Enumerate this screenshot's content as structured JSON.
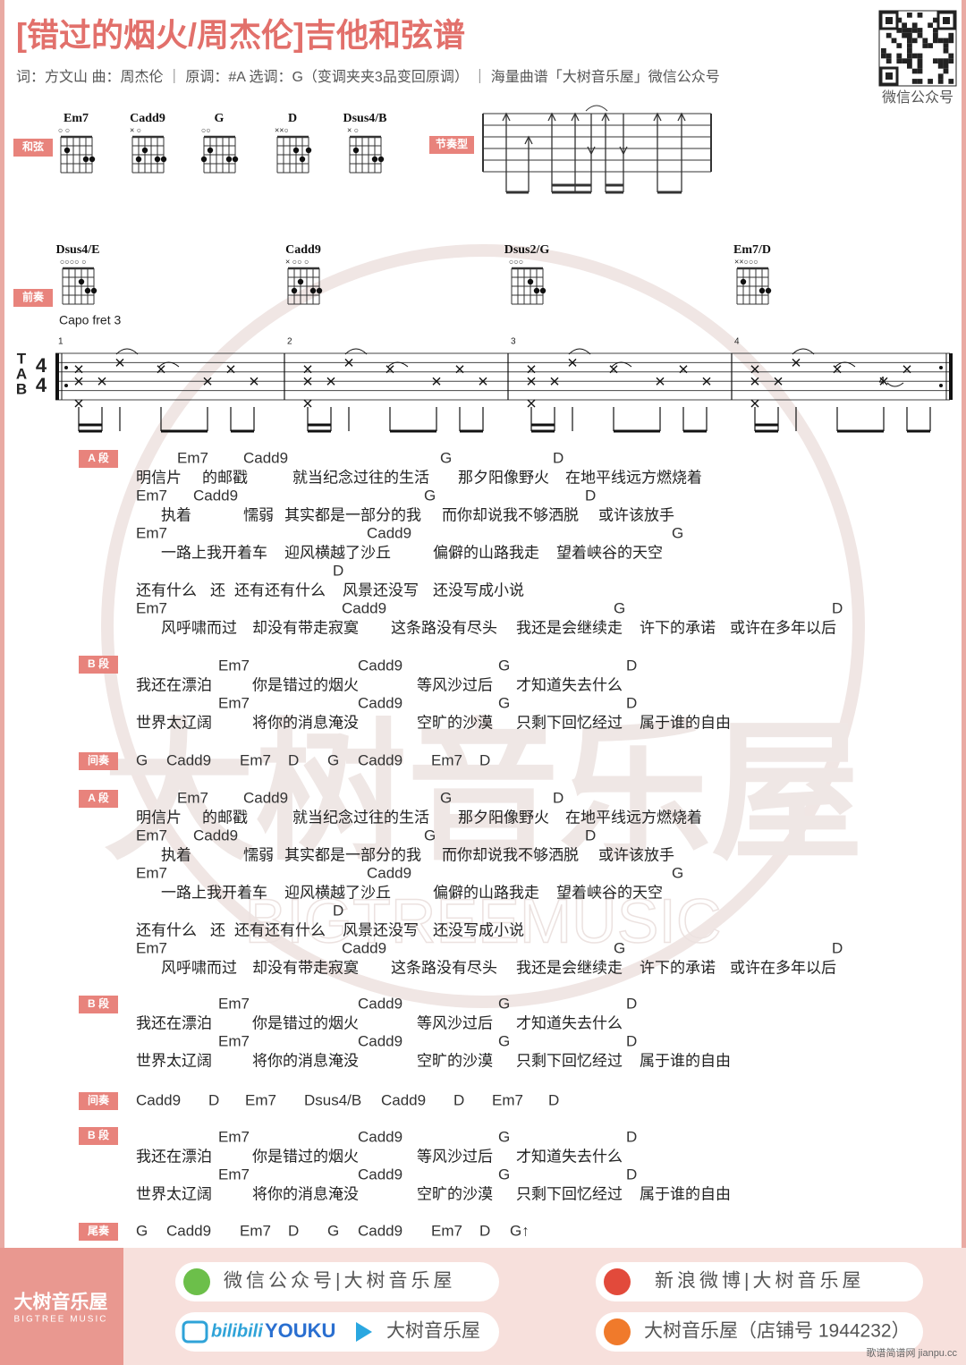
{
  "header": {
    "title": "[错过的烟火/周杰伦]吉他和弦谱",
    "meta": "词：方文山  曲：周杰伦 ｜ 原调：#A  选调：G（变调夹夹3品变回原调） ｜ 海量曲谱「大树音乐屋」微信公众号",
    "qr_caption": "微信公众号"
  },
  "chords_block": {
    "label": "和弦",
    "chords": [
      {
        "name": "Em7",
        "open": "○  ○"
      },
      {
        "name": "Cadd9",
        "open": "×  ○"
      },
      {
        "name": "G",
        "open": "○○"
      },
      {
        "name": "D",
        "open": "××○"
      },
      {
        "name": "Dsus4/B",
        "open": "×  ○"
      }
    ]
  },
  "rhythm_block": {
    "label": "节奏型"
  },
  "intro": {
    "label": "前奏",
    "chords": [
      {
        "name": "Dsus4/E",
        "open": "○○○○ ○"
      },
      {
        "name": "Cadd9",
        "open": "× ○○ ○"
      },
      {
        "name": "Dsus2/G",
        "open": "○○○"
      },
      {
        "name": "Em7/D",
        "open": "××○○○"
      }
    ],
    "capo": "Capo fret 3",
    "tab_clef": [
      "T",
      "A",
      "B"
    ],
    "time_signature": [
      "4",
      "4"
    ],
    "measure_numbers": [
      "1",
      "2",
      "3",
      "4"
    ],
    "fret_mark": "4"
  },
  "sections": [
    {
      "label": "A 段",
      "lines": [
        {
          "chords": [
            "Em7",
            "Cadd9",
            "G",
            "D"
          ],
          "lyrics": [
            "明信片",
            "的邮戳",
            "就当纪念过往的生活",
            "那夕阳像野火",
            "在地平线远方燃烧着"
          ]
        },
        {
          "chords": [
            "Em7",
            "Cadd9",
            "G",
            "D"
          ],
          "lyrics": [
            "执着",
            "懦弱",
            "其实都是一部分的我",
            "而你却说我不够洒脱",
            "或许该放手"
          ]
        },
        {
          "chords": [
            "Em7",
            "Cadd9",
            "G"
          ],
          "lyrics": [
            "一路上我开着车",
            "迎风横越了沙丘",
            "偏僻的山路我走",
            "望着峡谷的天空"
          ]
        },
        {
          "chords": [
            "D"
          ],
          "lyrics": [
            "还有什么",
            "还",
            "还有还有什么",
            "风景还没写",
            "还没写成小说"
          ]
        },
        {
          "chords": [
            "Em7",
            "Cadd9",
            "G",
            "D"
          ],
          "lyrics": [
            "风呼啸而过",
            "却没有带走寂寞",
            "这条路没有尽头",
            "我还是会继续走",
            "许下的承诺",
            "或许在多年以后"
          ]
        }
      ]
    },
    {
      "label": "B 段",
      "lines": [
        {
          "chords": [
            "Em7",
            "Cadd9",
            "G",
            "D"
          ],
          "lyrics": [
            "我还在漂泊",
            "你是错过的烟火",
            "等风沙过后",
            "才知道失去什么"
          ]
        },
        {
          "chords": [
            "Em7",
            "Cadd9",
            "G",
            "D"
          ],
          "lyrics": [
            "世界太辽阔",
            "将你的消息淹没",
            "空旷的沙漠",
            "只剩下回忆经过",
            "属于谁的自由"
          ]
        }
      ]
    },
    {
      "label": "间奏",
      "chords": [
        "G",
        "Cadd9",
        "Em7",
        "D",
        "G",
        "Cadd9",
        "Em7",
        "D"
      ]
    },
    {
      "label": "A 段",
      "lines": [
        {
          "chords": [
            "Em7",
            "Cadd9",
            "G",
            "D"
          ],
          "lyrics": [
            "明信片",
            "的邮戳",
            "就当纪念过往的生活",
            "那夕阳像野火",
            "在地平线远方燃烧着"
          ]
        },
        {
          "chords": [
            "Em7",
            "Cadd9",
            "G",
            "D"
          ],
          "lyrics": [
            "执着",
            "懦弱",
            "其实都是一部分的我",
            "而你却说我不够洒脱",
            "或许该放手"
          ]
        },
        {
          "chords": [
            "Em7",
            "Cadd9",
            "G"
          ],
          "lyrics": [
            "一路上我开着车",
            "迎风横越了沙丘",
            "偏僻的山路我走",
            "望着峡谷的天空"
          ]
        },
        {
          "chords": [
            "D"
          ],
          "lyrics": [
            "还有什么",
            "还",
            "还有还有什么",
            "风景还没写",
            "还没写成小说"
          ]
        },
        {
          "chords": [
            "Em7",
            "Cadd9",
            "G",
            "D"
          ],
          "lyrics": [
            "风呼啸而过",
            "却没有带走寂寞",
            "这条路没有尽头",
            "我还是会继续走",
            "许下的承诺",
            "或许在多年以后"
          ]
        }
      ]
    },
    {
      "label": "B 段",
      "lines": [
        {
          "chords": [
            "Em7",
            "Cadd9",
            "G",
            "D"
          ],
          "lyrics": [
            "我还在漂泊",
            "你是错过的烟火",
            "等风沙过后",
            "才知道失去什么"
          ]
        },
        {
          "chords": [
            "Em7",
            "Cadd9",
            "G",
            "D"
          ],
          "lyrics": [
            "世界太辽阔",
            "将你的消息淹没",
            "空旷的沙漠",
            "只剩下回忆经过",
            "属于谁的自由"
          ]
        }
      ]
    },
    {
      "label": "间奏",
      "chords": [
        "Cadd9",
        "D",
        "Em7",
        "Dsus4/B",
        "Cadd9",
        "D",
        "Em7",
        "D"
      ]
    },
    {
      "label": "B 段",
      "lines": [
        {
          "chords": [
            "Em7",
            "Cadd9",
            "G",
            "D"
          ],
          "lyrics": [
            "我还在漂泊",
            "你是错过的烟火",
            "等风沙过后",
            "才知道失去什么"
          ]
        },
        {
          "chords": [
            "Em7",
            "Cadd9",
            "G",
            "D"
          ],
          "lyrics": [
            "世界太辽阔",
            "将你的消息淹没",
            "空旷的沙漠",
            "只剩下回忆经过",
            "属于谁的自由"
          ]
        }
      ]
    },
    {
      "label": "尾奏",
      "chords": [
        "G",
        "Cadd9",
        "Em7",
        "D",
        "G",
        "Cadd9",
        "Em7",
        "D",
        "G↑"
      ]
    }
  ],
  "watermark": {
    "name": "大树音乐屋",
    "latin": "BIGTREEMUSIC"
  },
  "footer": {
    "brand": "大树音乐屋",
    "brand_latin": "BIGTREE MUSIC",
    "wechat": "微信公众号|大树音乐屋",
    "weibo": "新浪微博|大树音乐屋",
    "video_bili": "bilibili",
    "video_youku": "YOUKU",
    "video_name": "大树音乐屋",
    "shop": "大树音乐屋（店铺号 1944232）",
    "site": "歌谱简谱网 jianpu.cc"
  }
}
